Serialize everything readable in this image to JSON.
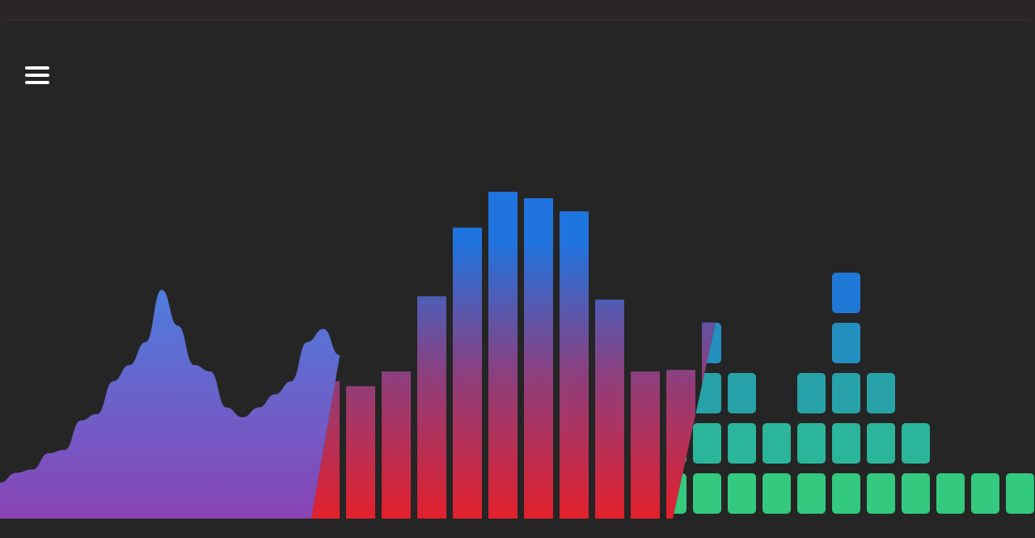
{
  "menu": {
    "icon": "hamburger-menu-icon"
  },
  "colors": {
    "background": "#252525",
    "wave_top": "#4a80e0",
    "wave_bottom": "#8a44b4",
    "bar_top": "#1f74e0",
    "bar_bottom": "#e3202c",
    "block_rows": [
      "#33c97e",
      "#2bb59a",
      "#27a2a8",
      "#2490c0",
      "#1f78d6"
    ]
  },
  "visualizer": {
    "wave_levels": [
      0.11,
      0.14,
      0.15,
      0.2,
      0.21,
      0.3,
      0.32,
      0.42,
      0.47,
      0.54,
      0.7,
      0.59,
      0.47,
      0.45,
      0.34,
      0.31,
      0.34,
      0.38,
      0.42,
      0.54,
      0.58,
      0.5,
      0.45
    ],
    "bar_levels": [
      0.42,
      0.405,
      0.45,
      0.68,
      0.89,
      1.0,
      0.98,
      0.94,
      0.67,
      0.45,
      0.455,
      0.6
    ],
    "block_levels": [
      3,
      4,
      3,
      2,
      3,
      5,
      3,
      2,
      1,
      1,
      1
    ]
  }
}
